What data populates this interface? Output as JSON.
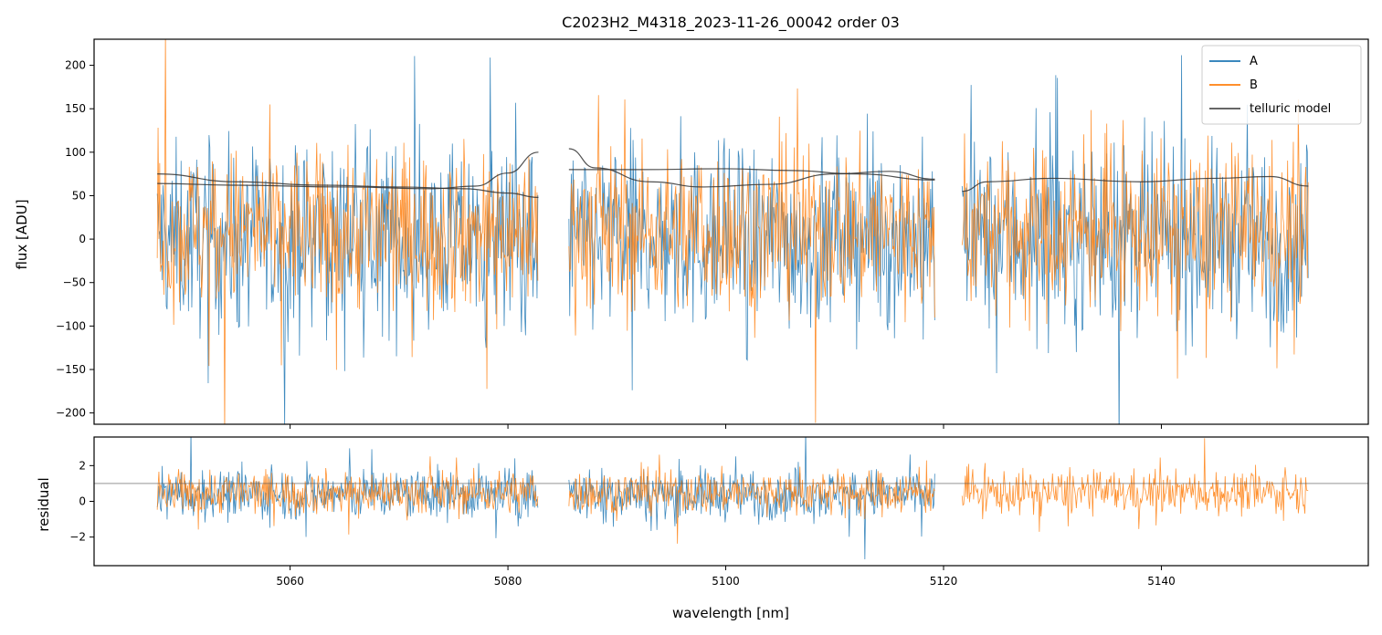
{
  "chart_data": {
    "type": "line",
    "title": "C2023H2_M4318_2023-11-26_00042  order 03",
    "xlabel": "wavelength [nm]",
    "xlim": [
      5042,
      5159
    ],
    "xticks": [
      5060,
      5080,
      5100,
      5120,
      5140
    ],
    "xtick_labels": [
      "5060",
      "5080",
      "5100",
      "5120",
      "5140"
    ],
    "colors": {
      "A": "#1f77b4",
      "B": "#ff7f0e",
      "telluric": "#333333",
      "residual_ref": "#555555"
    },
    "legend": {
      "placement": "top-right",
      "entries": [
        {
          "label": "A",
          "color": "#1f77b4"
        },
        {
          "label": "B",
          "color": "#ff7f0e"
        },
        {
          "label": "telluric model",
          "color": "#333333"
        }
      ]
    },
    "segments": [
      {
        "x_start": 5047.8,
        "x_end": 5082.8
      },
      {
        "x_start": 5085.6,
        "x_end": 5119.2
      },
      {
        "x_start": 5121.7,
        "x_end": 5153.5
      }
    ],
    "panels": [
      {
        "name": "flux",
        "ylabel": "flux [ADU]",
        "ylim": [
          -213,
          230
        ],
        "yticks": [
          200,
          150,
          100,
          50,
          0,
          -50,
          -100,
          -150,
          -200
        ],
        "ytick_labels": [
          "200",
          "150",
          "100",
          "50",
          "0",
          "−50",
          "−100",
          "−150",
          "−200"
        ],
        "noise": {
          "A": {
            "center": 0,
            "spread": 95,
            "segments_present": [
              0,
              1,
              2
            ]
          },
          "B": {
            "center": 10,
            "spread": 85,
            "segments_present": [
              0,
              1,
              2
            ]
          }
        },
        "telluric_model": [
          {
            "x": [
              5047.8,
              5055,
              5063,
              5070,
              5076,
              5080,
              5082.8
            ],
            "y": [
              75,
              66,
              62,
              60,
              58,
              53,
              48
            ]
          },
          {
            "x": [
              5047.8,
              5055,
              5065,
              5073,
              5077,
              5080,
              5082.8
            ],
            "y": [
              64,
              62,
              60,
              58,
              61,
              76,
              100
            ]
          },
          {
            "x": [
              5085.6,
              5088,
              5093,
              5098,
              5104,
              5110,
              5115,
              5119.2
            ],
            "y": [
              104,
              82,
              66,
              60,
              63,
              75,
              78,
              69
            ]
          },
          {
            "x": [
              5085.6,
              5092,
              5100,
              5106,
              5112,
              5119.2
            ],
            "y": [
              80,
              80,
              81,
              79,
              75,
              68
            ]
          },
          {
            "x": [
              5121.7,
              5124,
              5130,
              5138,
              5145,
              5150,
              5153.5
            ],
            "y": [
              55,
              66,
              70,
              66,
              70,
              72,
              61
            ]
          }
        ]
      },
      {
        "name": "residual",
        "ylabel": "residual",
        "ylim": [
          -3.6,
          3.6
        ],
        "yticks": [
          2,
          0,
          -2
        ],
        "ytick_labels": [
          "2",
          "0",
          "−2"
        ],
        "reference_line": 1.0,
        "noise": {
          "A": {
            "center": 0.4,
            "spread": 1.3,
            "segments_present": [
              0,
              1
            ]
          },
          "B": {
            "center": 0.5,
            "spread": 1.1,
            "segments_present": [
              0,
              1,
              2
            ]
          }
        }
      }
    ]
  }
}
